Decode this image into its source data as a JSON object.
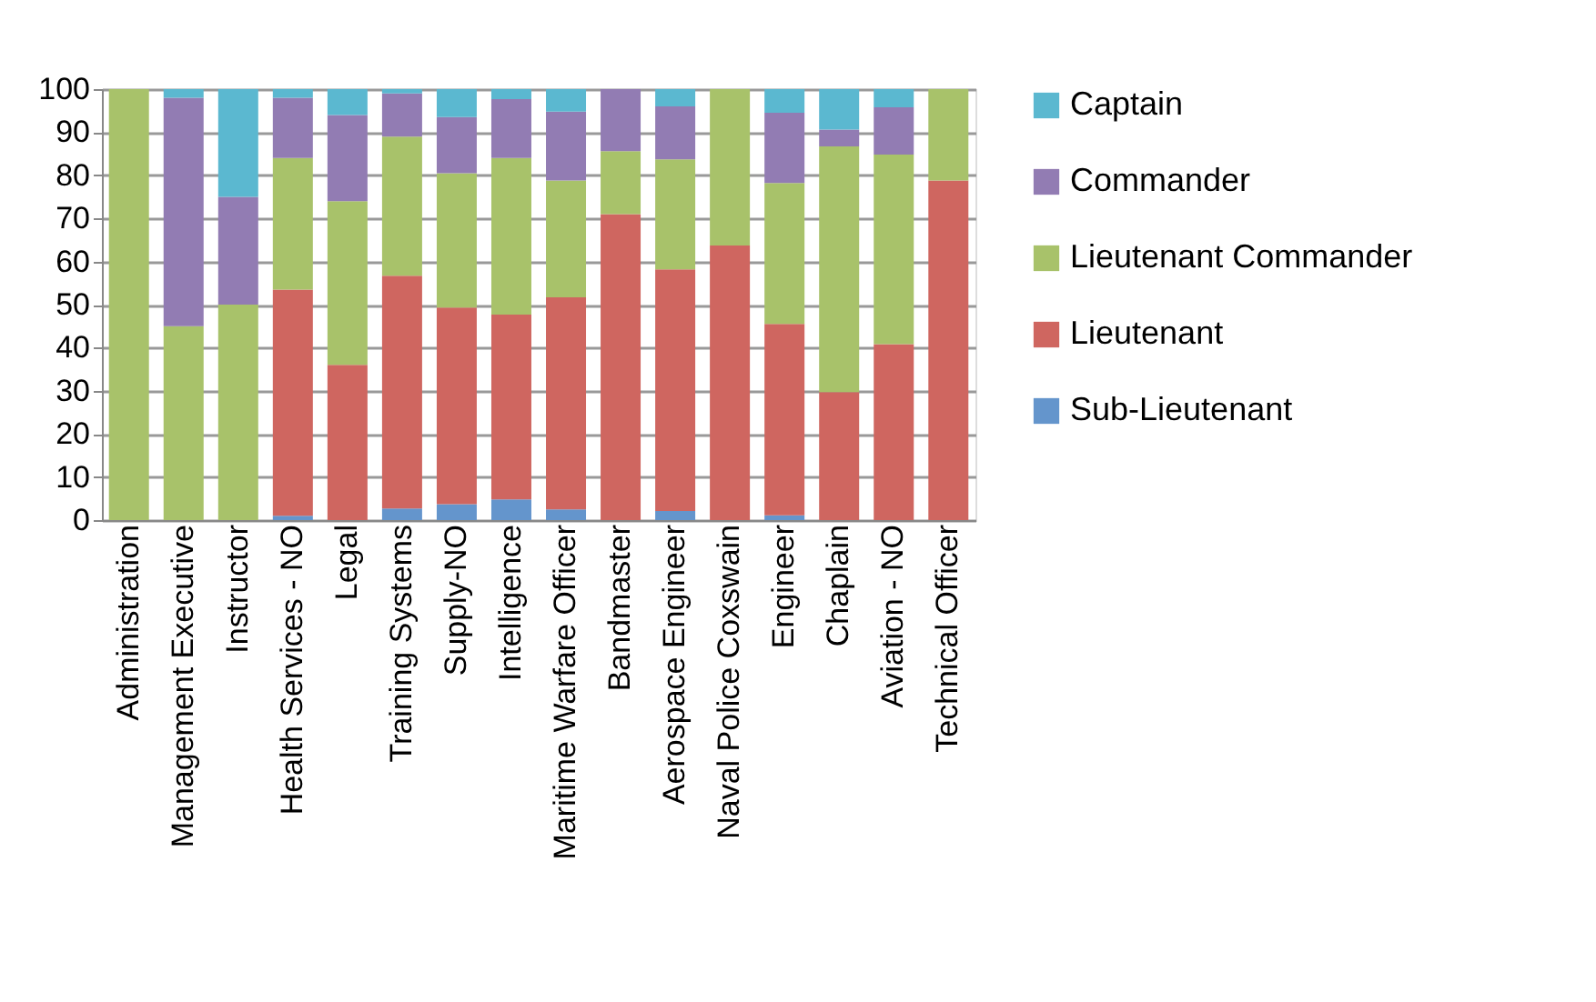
{
  "chart_data": {
    "type": "bar",
    "stacked": true,
    "categories": [
      "Administration",
      "Management Executive",
      "Instructor",
      "Health Services - NO",
      "Legal",
      "Training Systems",
      "Supply-NO",
      "Intelligence",
      "Maritime Warfare Officer",
      "Bandmaster",
      "Aerospace Engineer",
      "Naval Police Coxswain",
      "Engineer",
      "Chaplain",
      "Aviation - NO",
      "Technical Officer"
    ],
    "series": [
      {
        "name": "Sub-Lieutenant",
        "color": "#6495cc",
        "values": [
          null,
          null,
          null,
          1,
          null,
          2.7,
          3.7,
          4.8,
          2.5,
          null,
          2.1,
          null,
          1.1,
          null,
          null,
          null
        ]
      },
      {
        "name": "Lieutenant",
        "color": "#cf6660",
        "values": [
          null,
          null,
          null,
          52.5,
          36,
          54,
          45.6,
          42.9,
          49.2,
          71,
          56.1,
          63.7,
          44.4,
          29.7,
          40.8,
          78.8
        ]
      },
      {
        "name": "Lieutenant Commander",
        "color": "#a8c26a",
        "values": [
          100,
          45,
          50,
          30.5,
          38,
          32.3,
          31.2,
          36.3,
          27.1,
          14.6,
          25.5,
          36.3,
          32.7,
          57,
          44,
          21.2
        ]
      },
      {
        "name": "Commander",
        "color": "#927cb3",
        "values": [
          null,
          53,
          25,
          14,
          20,
          10,
          13,
          13.7,
          16,
          14.4,
          12.3,
          null,
          16.3,
          3.9,
          11,
          null
        ]
      },
      {
        "name": "Captain",
        "color": "#5bb8d0",
        "values": [
          null,
          2,
          25,
          2,
          6,
          1,
          6.5,
          2.3,
          5.2,
          null,
          4,
          null,
          5.5,
          9.4,
          4.2,
          null
        ]
      }
    ],
    "ylim": [
      0,
      100
    ],
    "yticks": [
      0,
      10,
      20,
      30,
      40,
      50,
      60,
      70,
      80,
      90,
      100
    ],
    "grid": "y",
    "legend": "right"
  }
}
